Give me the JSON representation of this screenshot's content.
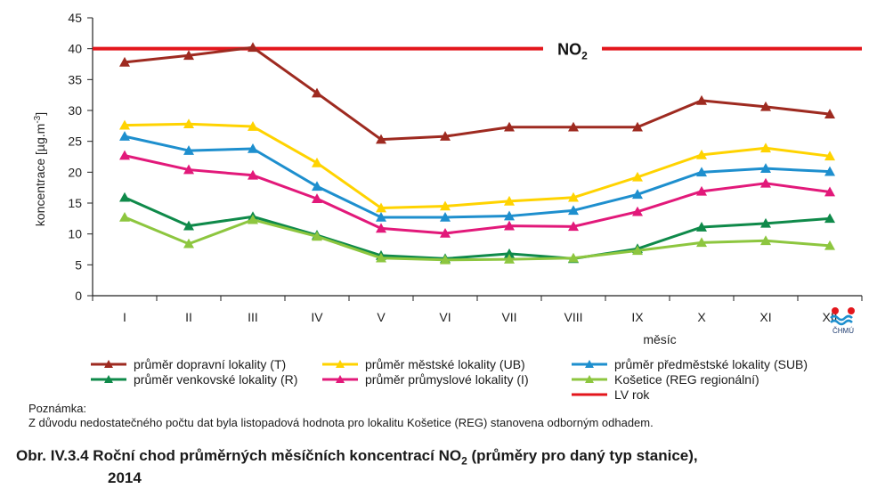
{
  "chart_data": {
    "type": "line",
    "categories": [
      "I",
      "II",
      "III",
      "IV",
      "V",
      "VI",
      "VII",
      "VIII",
      "IX",
      "X",
      "XI",
      "XII"
    ],
    "xlabel": "měsíc",
    "ylabel": "koncentrace [µg.m⁻³]",
    "ylim": [
      0,
      45
    ],
    "yticks": [
      0,
      5,
      10,
      15,
      20,
      25,
      30,
      35,
      40,
      45
    ],
    "limit_line": {
      "label": "NO",
      "label_sub": "2",
      "value": 40,
      "color": "#e3161c"
    },
    "series": [
      {
        "name": "průměr dopravní lokality (T)",
        "color": "#9e2a20",
        "values": [
          37.8,
          38.9,
          40.2,
          32.8,
          25.3,
          25.8,
          27.3,
          27.3,
          27.3,
          31.6,
          30.6,
          29.4
        ]
      },
      {
        "name": "průměr městské lokality (UB)",
        "color": "#ffd300",
        "values": [
          27.6,
          27.8,
          27.4,
          21.5,
          14.2,
          14.5,
          15.3,
          15.9,
          19.2,
          22.8,
          23.9,
          22.6
        ]
      },
      {
        "name": "průměr předměstské lokality (SUB)",
        "color": "#1e8fce",
        "values": [
          25.8,
          23.5,
          23.8,
          17.7,
          12.7,
          12.7,
          12.9,
          13.8,
          16.4,
          20.0,
          20.6,
          20.1
        ]
      },
      {
        "name": "průměr venkovské lokality (R)",
        "color": "#0f8a4a",
        "values": [
          15.9,
          11.3,
          12.8,
          9.8,
          6.5,
          6.0,
          6.8,
          6.0,
          7.6,
          11.1,
          11.7,
          12.5
        ]
      },
      {
        "name": "průměr průmyslové lokality (I)",
        "color": "#e2197a",
        "values": [
          22.7,
          20.4,
          19.5,
          15.7,
          10.9,
          10.1,
          11.3,
          11.2,
          13.6,
          16.9,
          18.2,
          16.8
        ]
      },
      {
        "name": "Košetice (REG regionální)",
        "color": "#8dc63f",
        "values": [
          12.7,
          8.4,
          12.3,
          9.6,
          6.1,
          5.8,
          5.9,
          6.1,
          7.3,
          8.6,
          8.9,
          8.1
        ]
      }
    ],
    "legend_extra": {
      "name": "LV rok",
      "color": "#e3161c"
    }
  },
  "note": {
    "title": "Poznámka:",
    "text": "Z důvodu nedostatečného počtu dat byla listopadová hodnota pro lokalitu Košetice (REG) stanovena odborným odhadem."
  },
  "caption": {
    "prefix": "Obr. IV.3.4  Roční chod průměrných měsíčních koncentrací NO",
    "sub": "2",
    "suffix": " (průměry pro daný typ stanice),",
    "line2": "2014"
  },
  "logo": {
    "text": "ČHMÚ",
    "colors": [
      "#e3161c",
      "#1e8fce"
    ]
  }
}
